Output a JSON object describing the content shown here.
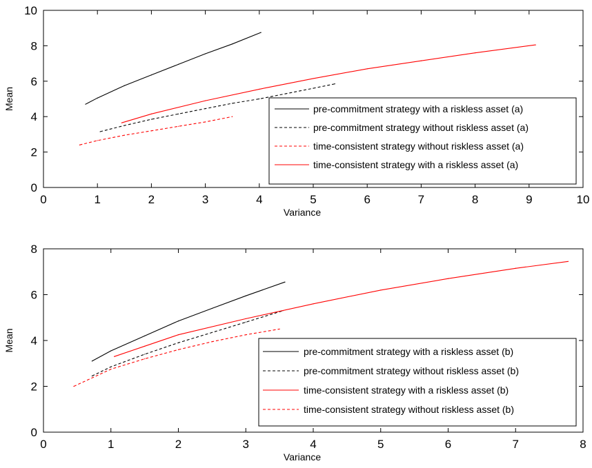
{
  "chart_data": [
    {
      "type": "line",
      "xlabel": "Variance",
      "ylabel": "Mean",
      "xlim": [
        0,
        10
      ],
      "ylim": [
        0,
        10
      ],
      "xticks": [
        "0",
        "1",
        "2",
        "3",
        "4",
        "5",
        "6",
        "7",
        "8",
        "9",
        "10"
      ],
      "yticks": [
        "0",
        "2",
        "4",
        "6",
        "8",
        "10"
      ],
      "grid": false,
      "legend_position": "bottom-right",
      "series": [
        {
          "name": "pre-commitment strategy with a riskless asset (a)",
          "color": "#000000",
          "style": "solid",
          "x": [
            0.78,
            1.0,
            1.5,
            2.0,
            2.5,
            3.0,
            3.5,
            4.03
          ],
          "y": [
            4.7,
            5.05,
            5.75,
            6.35,
            6.95,
            7.55,
            8.1,
            8.75
          ]
        },
        {
          "name": "pre-commitment strategy without riskless asset (a)",
          "color": "#000000",
          "style": "dashed",
          "x": [
            1.05,
            1.5,
            2.0,
            2.5,
            3.0,
            3.5,
            4.0,
            4.5,
            5.0,
            5.4
          ],
          "y": [
            3.15,
            3.5,
            3.85,
            4.15,
            4.45,
            4.75,
            5.0,
            5.3,
            5.6,
            5.85
          ]
        },
        {
          "name": "time-consistent strategy without riskless asset (a)",
          "color": "#ff0000",
          "style": "dashed",
          "x": [
            0.67,
            1.0,
            1.5,
            2.0,
            2.5,
            3.0,
            3.5
          ],
          "y": [
            2.4,
            2.65,
            2.95,
            3.2,
            3.45,
            3.7,
            4.0
          ]
        },
        {
          "name": "time-consistent strategy with a riskless asset (a)",
          "color": "#ff0000",
          "style": "solid",
          "x": [
            1.45,
            2.0,
            3.0,
            4.0,
            5.0,
            6.0,
            7.0,
            8.0,
            9.12
          ],
          "y": [
            3.65,
            4.15,
            4.9,
            5.55,
            6.15,
            6.7,
            7.15,
            7.6,
            8.05
          ]
        }
      ]
    },
    {
      "type": "line",
      "xlabel": "Variance",
      "ylabel": "Mean",
      "xlim": [
        0,
        8
      ],
      "ylim": [
        0,
        8
      ],
      "xticks": [
        "0",
        "1",
        "2",
        "3",
        "4",
        "5",
        "6",
        "7",
        "8"
      ],
      "yticks": [
        "0",
        "2",
        "4",
        "6",
        "8"
      ],
      "grid": false,
      "legend_position": "bottom-right",
      "series": [
        {
          "name": "pre-commitment strategy with a riskless asset  (b)",
          "color": "#000000",
          "style": "solid",
          "x": [
            0.72,
            1.0,
            1.5,
            2.0,
            2.5,
            3.0,
            3.58
          ],
          "y": [
            3.1,
            3.55,
            4.2,
            4.85,
            5.4,
            5.95,
            6.55
          ]
        },
        {
          "name": "pre-commitment strategy without riskless asset  (b)",
          "color": "#000000",
          "style": "dashed",
          "x": [
            0.72,
            1.0,
            1.5,
            2.0,
            2.5,
            3.0,
            3.55
          ],
          "y": [
            2.45,
            2.85,
            3.4,
            3.9,
            4.35,
            4.8,
            5.3
          ]
        },
        {
          "name": "time-consistent strategy with a riskless asset  (b)",
          "color": "#ff0000",
          "style": "solid",
          "x": [
            1.05,
            1.5,
            2.0,
            3.0,
            4.0,
            5.0,
            6.0,
            7.0,
            7.78
          ],
          "y": [
            3.3,
            3.75,
            4.25,
            4.95,
            5.6,
            6.2,
            6.7,
            7.15,
            7.45
          ]
        },
        {
          "name": "time-consistent strategy without riskless asset  (b)",
          "color": "#ff0000",
          "style": "dashed",
          "x": [
            0.45,
            1.0,
            1.5,
            2.0,
            2.5,
            3.0,
            3.5
          ],
          "y": [
            2.0,
            2.75,
            3.2,
            3.6,
            3.95,
            4.25,
            4.5
          ]
        }
      ]
    }
  ]
}
